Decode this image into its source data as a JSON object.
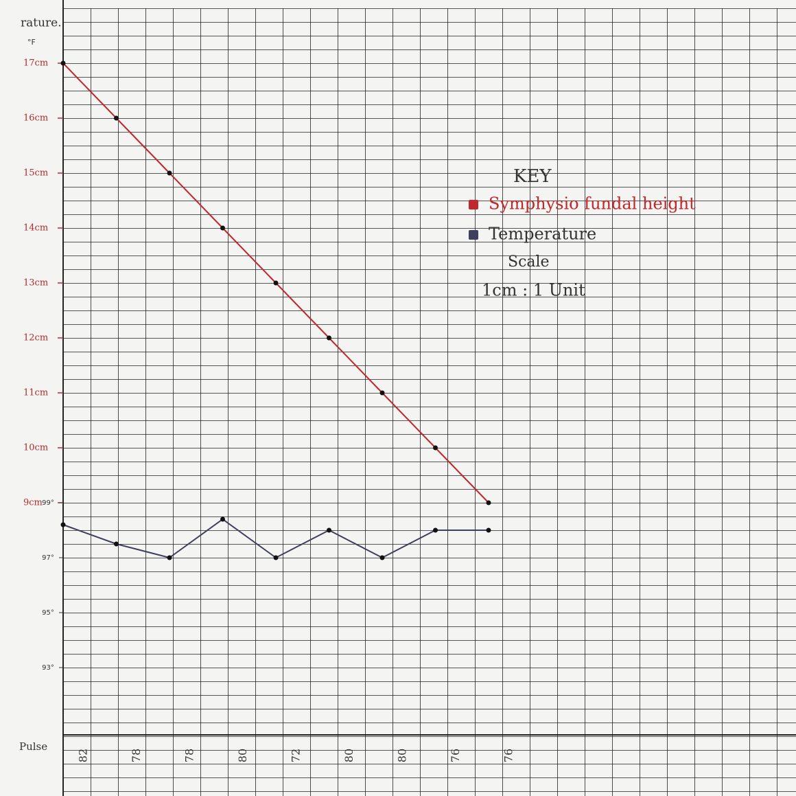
{
  "chart_data": {
    "type": "line",
    "y_label": "rature.",
    "y_unit": "°F",
    "categories_label": "Pulse",
    "categories": [
      "82",
      "78",
      "78",
      "80",
      "72",
      "80",
      "80",
      "76",
      "76"
    ],
    "ylim": [
      4.8,
      17
    ],
    "yticks": [
      {
        "value": 17,
        "label": "17cm"
      },
      {
        "value": 16,
        "label": "16cm"
      },
      {
        "value": 15,
        "label": "15cm"
      },
      {
        "value": 14,
        "label": "14cm"
      },
      {
        "value": 13,
        "label": "13cm"
      },
      {
        "value": 12,
        "label": "12cm"
      },
      {
        "value": 11,
        "label": "11cm"
      },
      {
        "value": 10,
        "label": "10cm"
      },
      {
        "value": 9,
        "label": "9cm"
      }
    ],
    "y2lim": [
      90.6,
      115
    ],
    "y2ticks": [
      {
        "value": 99,
        "label": "99°"
      },
      {
        "value": 97,
        "label": "97°"
      },
      {
        "value": 95,
        "label": "95°"
      },
      {
        "value": 93,
        "label": "93°"
      }
    ],
    "grid": true,
    "legend_title": "KEY",
    "scale_title": "Scale",
    "scale_text": "1cm : 1 Unit",
    "series": [
      {
        "name": "Symphysio fundal height",
        "color": "#c0282b",
        "values": [
          17,
          16,
          15,
          14,
          13,
          12,
          11,
          10,
          9
        ]
      },
      {
        "name": "Temperature",
        "color": "#3d3f5c",
        "axis": "y2",
        "values": [
          98.2,
          97.5,
          97,
          98.4,
          97,
          98,
          97,
          98,
          98
        ]
      }
    ]
  }
}
